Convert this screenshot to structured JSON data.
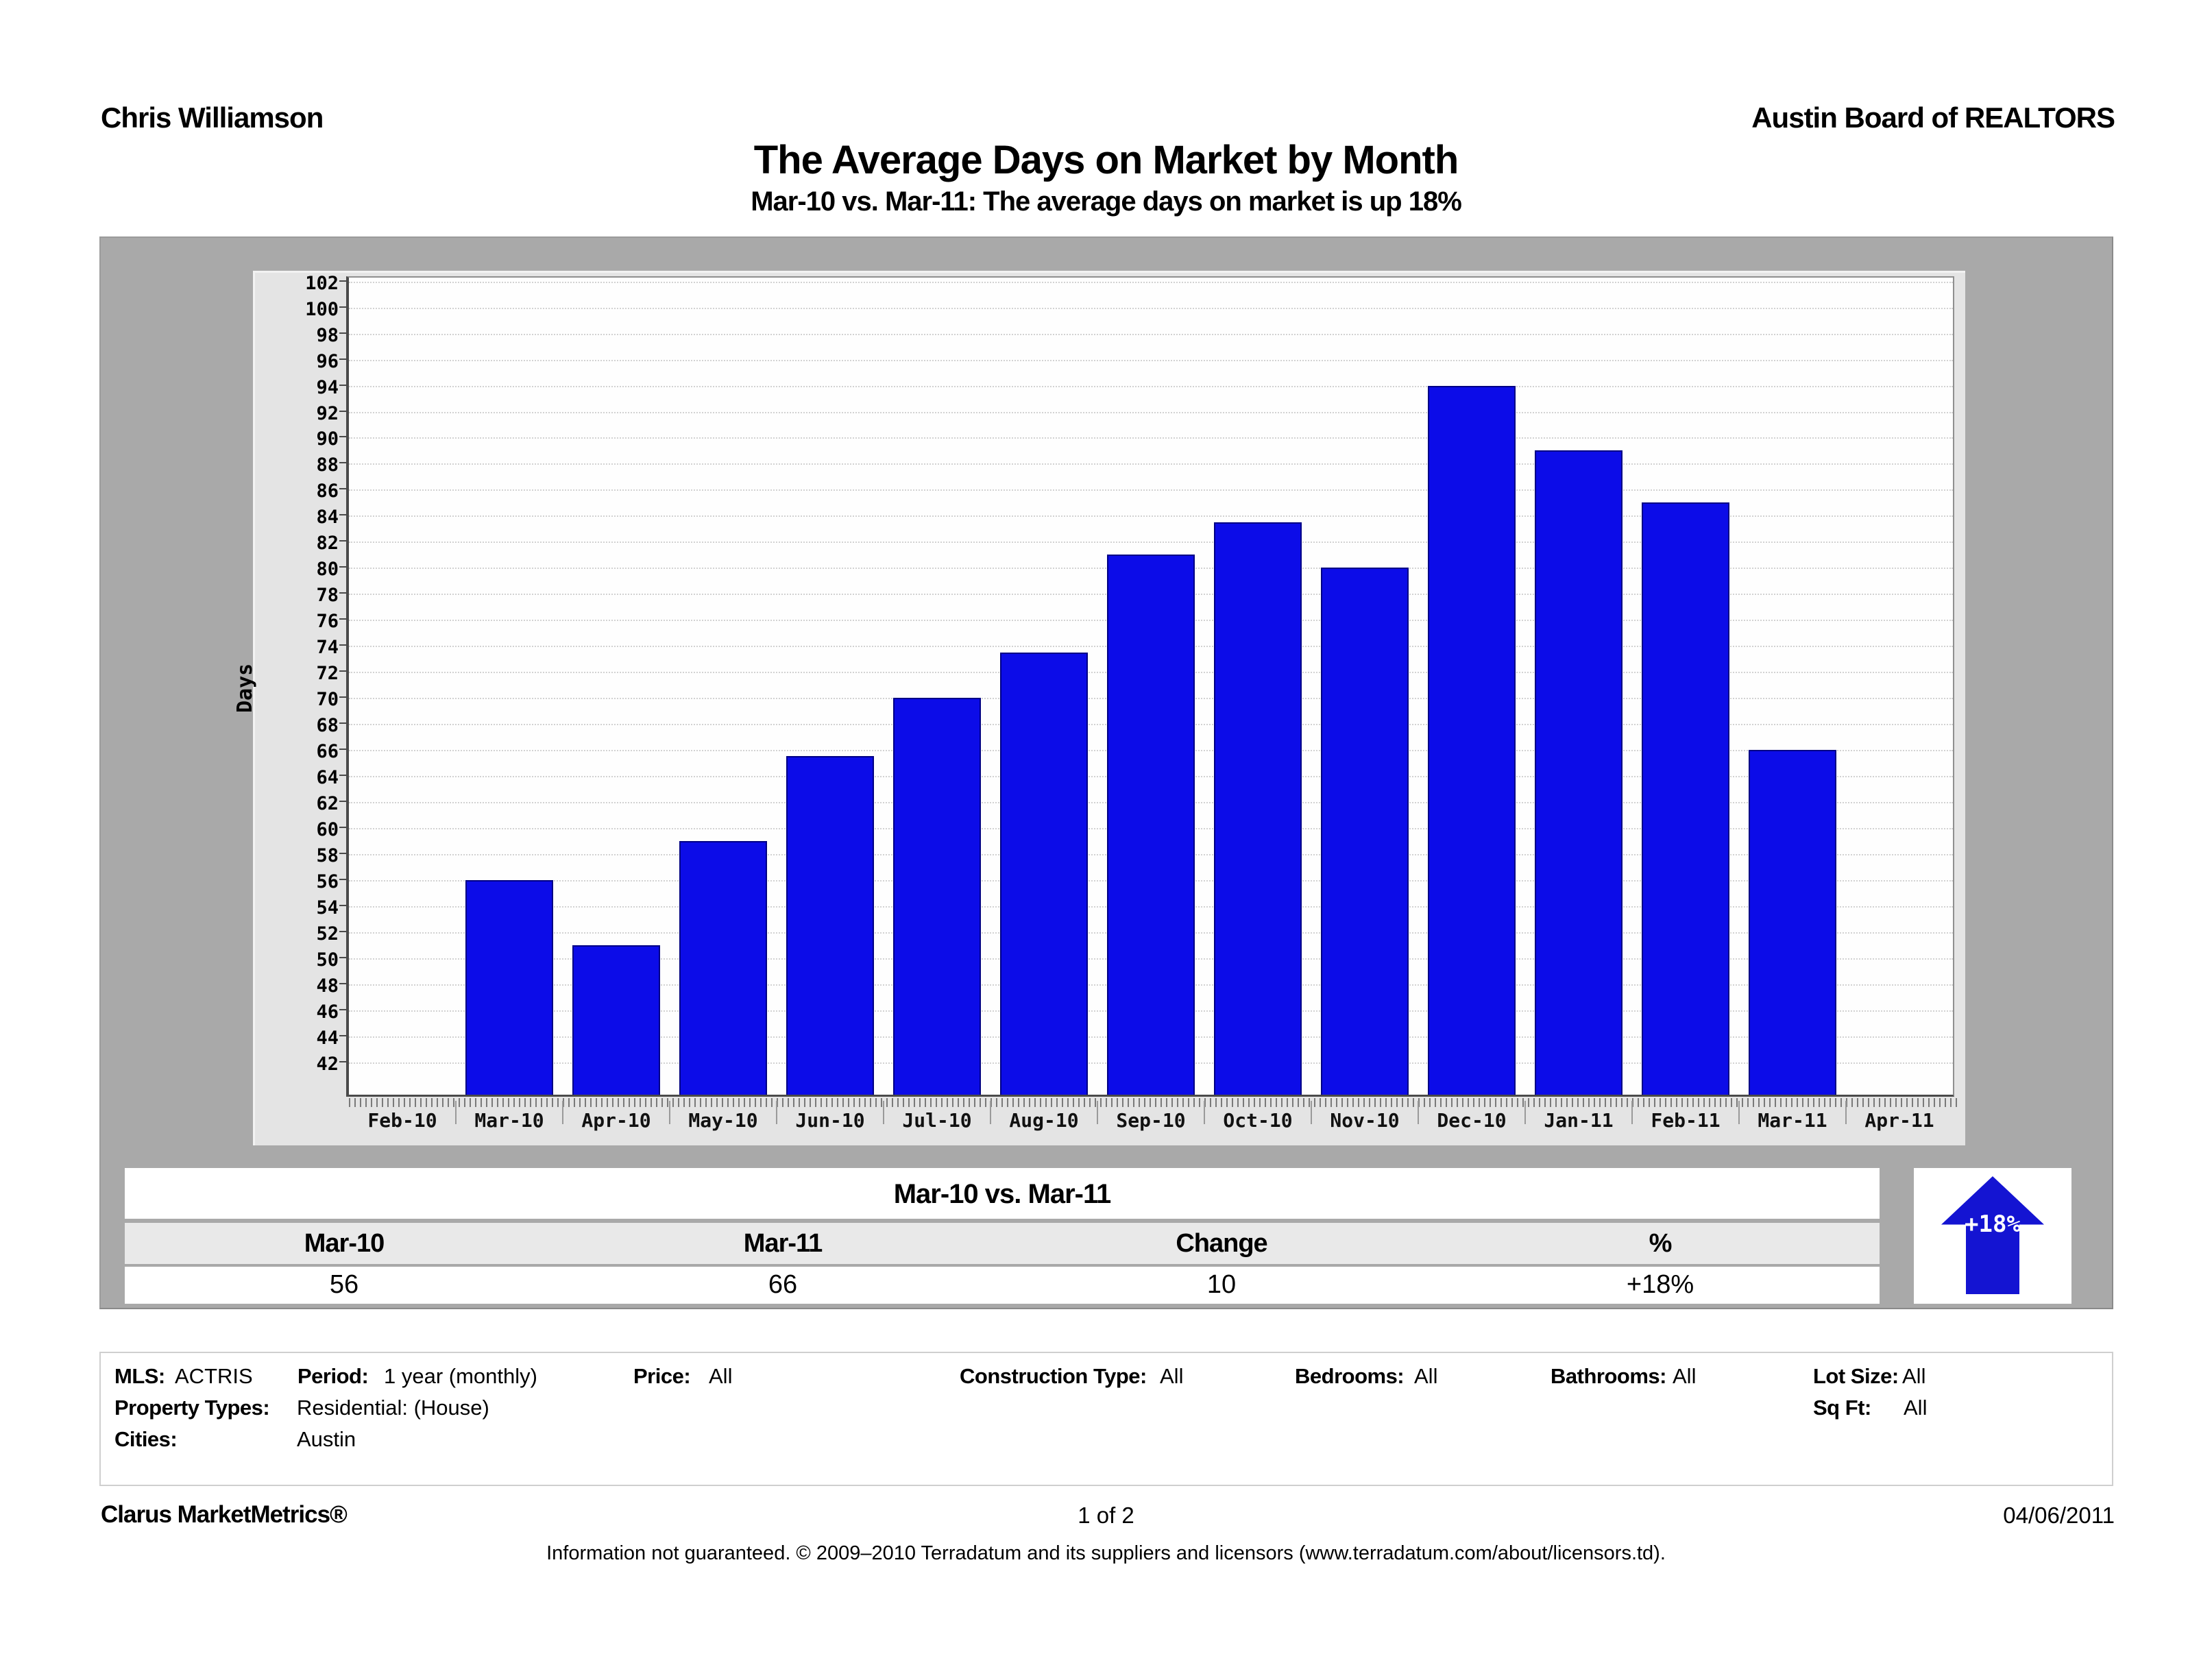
{
  "header": {
    "agent": "Chris Williamson",
    "organization": "Austin Board of REALTORS"
  },
  "title": "The Average Days on Market by Month",
  "subtitle": "Mar-10 vs. Mar-11:  The average days on market is up 18%",
  "chart_data": {
    "type": "bar",
    "ylabel": "Days",
    "categories": [
      "Feb-10",
      "Mar-10",
      "Apr-10",
      "May-10",
      "Jun-10",
      "Jul-10",
      "Aug-10",
      "Sep-10",
      "Oct-10",
      "Nov-10",
      "Dec-10",
      "Jan-11",
      "Feb-11",
      "Mar-11",
      "Apr-11"
    ],
    "values": [
      null,
      56,
      51,
      59,
      65.5,
      70,
      73.5,
      81,
      83.5,
      80,
      94,
      89,
      85,
      66,
      null
    ],
    "ylim": [
      39.5,
      102.3
    ],
    "yticks": {
      "min": 42,
      "max": 102,
      "step": 2
    },
    "grid": true,
    "legend": "none",
    "bar_color": "#0c0ce8",
    "bar_border": "#000085"
  },
  "comparison": {
    "title": "Mar-10 vs. Mar-11",
    "columns": [
      "Mar-10",
      "Mar-11",
      "Change",
      "%"
    ],
    "values": [
      "56",
      "66",
      "10",
      "+18%"
    ],
    "badge": {
      "label": "+18%",
      "direction": "up",
      "color": "#1414d2"
    }
  },
  "criteria": {
    "items": [
      {
        "label": "MLS:",
        "value": "ACTRIS"
      },
      {
        "label": "Period:",
        "value": "1 year (monthly)"
      },
      {
        "label": "Price:",
        "value": "All"
      },
      {
        "label": "Construction Type:",
        "value": "All"
      },
      {
        "label": "Bedrooms:",
        "value": "All"
      },
      {
        "label": "Bathrooms:",
        "value": "All"
      },
      {
        "label": "Lot Size:",
        "value": "All"
      },
      {
        "label": "Property Types:",
        "value": "Residential: (House)"
      },
      {
        "label": "Sq Ft:",
        "value": "All"
      },
      {
        "label": "Cities:",
        "value": "Austin"
      }
    ]
  },
  "footer": {
    "brand": "Clarus MarketMetrics®",
    "page": "1 of 2",
    "date": "04/06/2011",
    "disclaimer": "Information not guaranteed.  © 2009–2010 Terradatum and its suppliers and licensors (www.terradatum.com/about/licensors.td)."
  }
}
